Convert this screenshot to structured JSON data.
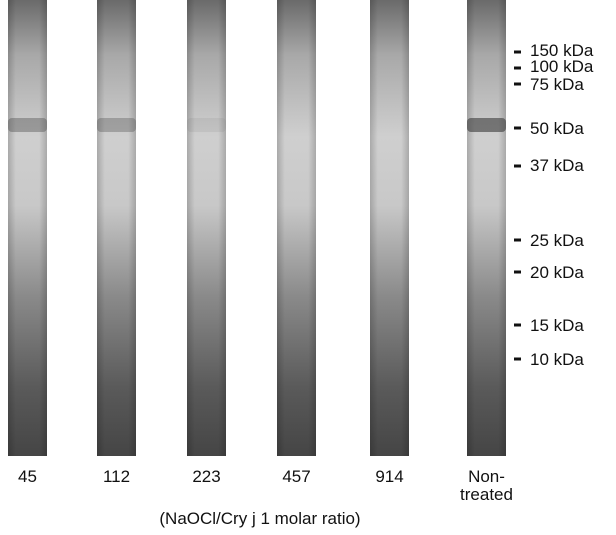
{
  "lanes": [
    {
      "lines": [
        "45"
      ]
    },
    {
      "lines": [
        "112"
      ]
    },
    {
      "lines": [
        "223"
      ]
    },
    {
      "lines": [
        "457"
      ]
    },
    {
      "lines": [
        "914"
      ]
    },
    {
      "lines": [
        "Non-",
        "treated"
      ]
    }
  ],
  "markers": [
    "150 kDa",
    "100 kDa",
    "75 kDa",
    "50 kDa",
    "37 kDa",
    "25 kDa",
    "20 kDa",
    "15 kDa",
    "10 kDa"
  ],
  "caption": "(NaOCl/Cry j 1 molar ratio)"
}
